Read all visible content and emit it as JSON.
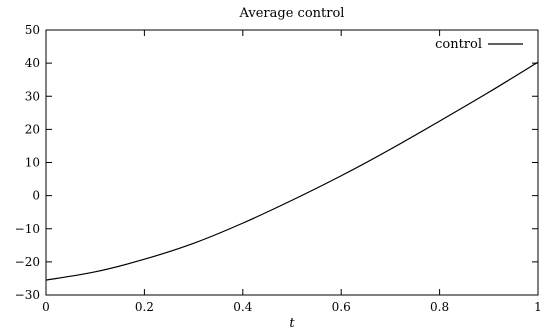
{
  "chart_data": {
    "type": "line",
    "title": "Average control",
    "xlabel": "t",
    "ylabel": "",
    "xlim": [
      0,
      1
    ],
    "ylim": [
      -30,
      50
    ],
    "xticks": [
      0,
      0.2,
      0.4,
      0.6,
      0.8,
      1
    ],
    "xtick_labels": [
      "0",
      "0.2",
      "0.4",
      "0.6",
      "0.8",
      "1"
    ],
    "yticks": [
      -30,
      -20,
      -10,
      0,
      10,
      20,
      30,
      40,
      50
    ],
    "ytick_labels": [
      "−30",
      "−20",
      "−10",
      "0",
      "10",
      "20",
      "30",
      "40",
      "50"
    ],
    "grid": false,
    "legend_position": "top-right",
    "series": [
      {
        "name": "control",
        "color": "#000000",
        "x": [
          0,
          0.1,
          0.2,
          0.3,
          0.4,
          0.5,
          0.6,
          0.7,
          0.8,
          0.9,
          1.0
        ],
        "y": [
          -25.5,
          -23.0,
          -19.2,
          -14.4,
          -8.3,
          -1.4,
          6.0,
          14.0,
          22.5,
          31.2,
          40.3
        ]
      }
    ]
  }
}
